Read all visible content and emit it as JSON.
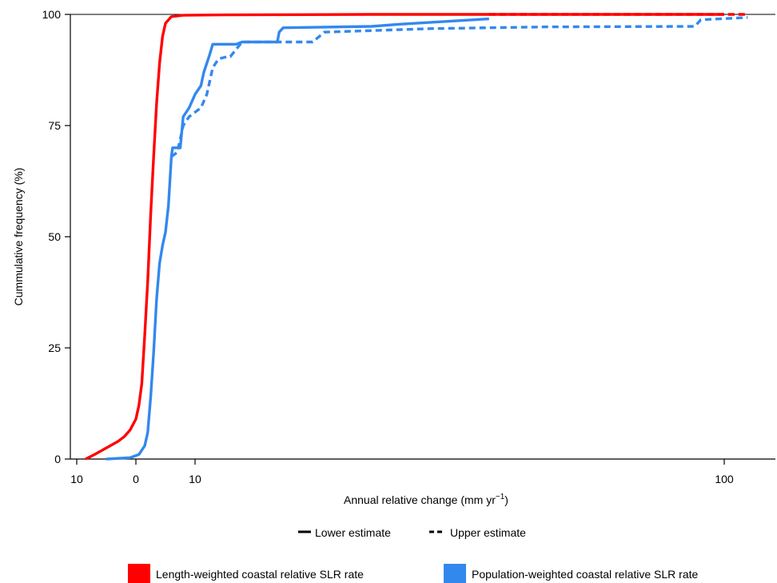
{
  "chart_data": {
    "type": "line",
    "title": "",
    "xlabel": "Annual relative change (mm yr",
    "xlabel_superscript": "−1",
    "xlabel_suffix": ")",
    "ylabel": "Cummulative frequency (%)",
    "ylim": [
      0,
      100
    ],
    "y_ticks": [
      0,
      25,
      50,
      75,
      100
    ],
    "x_scale": "piecewise (axis labelled 10, 0, 10, 100)",
    "x_ticks": [
      {
        "value": -10,
        "label": "10"
      },
      {
        "value": 0,
        "label": "0"
      },
      {
        "value": 10,
        "label": "10"
      },
      {
        "value": 100,
        "label": "100"
      }
    ],
    "grid": false,
    "line_style_legend": [
      {
        "style": "solid",
        "label": "Lower estimate"
      },
      {
        "style": "dashed",
        "label": "Upper estimate"
      }
    ],
    "color_legend": [
      {
        "color": "#ff0000",
        "label": "Length-weighted coastal relative SLR rate"
      },
      {
        "color": "#3388ee",
        "label": "Population-weighted coastal relative SLR rate"
      }
    ],
    "series": [
      {
        "color": "#ff0000",
        "style": "solid",
        "points": [
          [
            -8.5,
            0
          ],
          [
            -7,
            1
          ],
          [
            -5,
            2.5
          ],
          [
            -3,
            4
          ],
          [
            -2,
            5
          ],
          [
            -1,
            6.5
          ],
          [
            0,
            9
          ],
          [
            0.5,
            12
          ],
          [
            1,
            17
          ],
          [
            1.5,
            28
          ],
          [
            2,
            40
          ],
          [
            2.5,
            55
          ],
          [
            3,
            68
          ],
          [
            3.5,
            80
          ],
          [
            4,
            89
          ],
          [
            4.5,
            95
          ],
          [
            5,
            98
          ],
          [
            6,
            99.5
          ],
          [
            8,
            99.8
          ],
          [
            15,
            99.9
          ],
          [
            40,
            100
          ],
          [
            100,
            100
          ]
        ]
      },
      {
        "color": "#ff0000",
        "style": "dashed",
        "points": [
          [
            60,
            100
          ],
          [
            104,
            100
          ]
        ]
      },
      {
        "color": "#3388ee",
        "style": "solid",
        "points": [
          [
            -5,
            0
          ],
          [
            -1,
            0.3
          ],
          [
            0.5,
            1
          ],
          [
            1.5,
            3
          ],
          [
            2,
            6
          ],
          [
            2.5,
            14
          ],
          [
            3,
            24
          ],
          [
            3.5,
            36
          ],
          [
            4,
            44
          ],
          [
            4.5,
            48
          ],
          [
            5,
            51
          ],
          [
            5.5,
            57
          ],
          [
            6,
            68
          ],
          [
            6.2,
            70
          ],
          [
            7.5,
            70
          ],
          [
            8,
            77
          ],
          [
            9,
            79
          ],
          [
            10,
            82
          ],
          [
            11,
            84
          ],
          [
            11.5,
            87
          ],
          [
            12.5,
            91
          ],
          [
            13,
            93.3
          ],
          [
            17,
            93.3
          ],
          [
            18,
            93.8
          ],
          [
            24,
            93.8
          ],
          [
            24.3,
            96
          ],
          [
            25,
            97
          ],
          [
            40,
            97.3
          ],
          [
            45,
            97.8
          ],
          [
            60,
            99
          ]
        ]
      },
      {
        "color": "#3388ee",
        "style": "dashed",
        "points": [
          [
            6,
            68
          ],
          [
            7,
            69
          ],
          [
            7.5,
            72
          ],
          [
            8,
            75
          ],
          [
            9,
            77
          ],
          [
            10,
            78
          ],
          [
            11,
            79
          ],
          [
            12,
            82
          ],
          [
            12.5,
            85
          ],
          [
            13,
            88
          ],
          [
            14,
            90
          ],
          [
            15.5,
            90.5
          ],
          [
            16,
            90.5
          ],
          [
            18,
            93.8
          ],
          [
            24,
            93.8
          ],
          [
            25,
            93.8
          ],
          [
            30,
            93.8
          ],
          [
            32,
            96
          ],
          [
            50,
            96.8
          ],
          [
            70,
            97.2
          ],
          [
            95,
            97.3
          ],
          [
            96,
            98.8
          ],
          [
            104,
            99.3
          ]
        ]
      }
    ]
  }
}
